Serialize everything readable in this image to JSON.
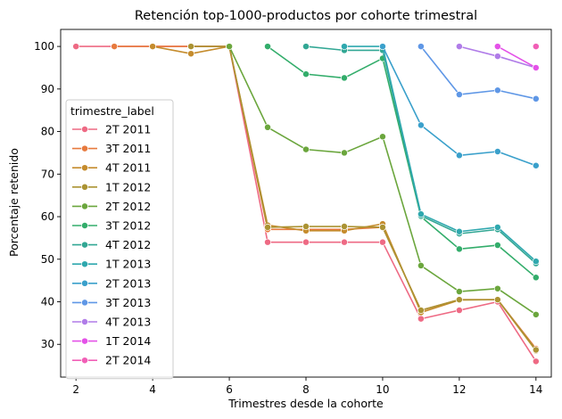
{
  "chart_data": {
    "type": "line",
    "title": "Retención top-1000-productos por cohorte trimestral",
    "xlabel": "Trimestres desde la cohorte",
    "ylabel": "Porcentaje retenido",
    "xlim": [
      1.6,
      14.4
    ],
    "ylim": [
      22.3,
      104.0
    ],
    "xticks": [
      2,
      4,
      6,
      8,
      10,
      12,
      14
    ],
    "yticks": [
      30,
      40,
      50,
      60,
      70,
      80,
      90,
      100
    ],
    "grid": false,
    "legend": {
      "title": "trimestre_label",
      "placement": "center-left"
    },
    "series": [
      {
        "name": "2T 2011",
        "color": "#ee6a84",
        "x": [
          2,
          3,
          4,
          5,
          6,
          7,
          8,
          9,
          10,
          11,
          12,
          13,
          14
        ],
        "y": [
          100,
          100,
          100,
          100,
          100,
          54,
          54,
          54,
          54,
          36,
          38,
          40,
          26
        ]
      },
      {
        "name": "3T 2011",
        "color": "#e77a3e",
        "x": [
          3,
          4,
          5,
          6,
          7,
          8,
          9,
          10,
          11,
          12,
          13,
          14
        ],
        "y": [
          100,
          100,
          100,
          100,
          57,
          57,
          57,
          57.5,
          38,
          40.5,
          40.5,
          29
        ]
      },
      {
        "name": "4T 2011",
        "color": "#c58c2d",
        "x": [
          4,
          5,
          6,
          7,
          8,
          9,
          10,
          11,
          12,
          13,
          14
        ],
        "y": [
          100,
          98.3,
          100,
          58,
          56.7,
          56.7,
          58.3,
          37.5,
          40.4,
          40.5,
          28.5
        ]
      },
      {
        "name": "1T 2012",
        "color": "#ab9333",
        "x": [
          5,
          6,
          7,
          8,
          9,
          10,
          11,
          12,
          13,
          14
        ],
        "y": [
          100,
          100,
          57.5,
          57.7,
          57.7,
          57.5,
          38,
          40.5,
          40.5,
          28.7
        ]
      },
      {
        "name": "2T 2012",
        "color": "#6ba63d",
        "x": [
          6,
          7,
          8,
          9,
          10,
          11,
          12,
          13,
          14
        ],
        "y": [
          100,
          81,
          75.8,
          75,
          78.8,
          48.5,
          42.4,
          43.1,
          37
        ]
      },
      {
        "name": "3T 2012",
        "color": "#33ad6b",
        "x": [
          7,
          8,
          9,
          10,
          11,
          12,
          13,
          14
        ],
        "y": [
          100,
          93.5,
          92.6,
          97.2,
          60,
          52.4,
          53.3,
          45.7
        ]
      },
      {
        "name": "4T 2012",
        "color": "#32a794",
        "x": [
          8,
          9,
          10,
          11,
          12,
          13,
          14
        ],
        "y": [
          100,
          99.1,
          99.1,
          60.2,
          56,
          57,
          49
        ]
      },
      {
        "name": "1T 2013",
        "color": "#2fa8ae",
        "x": [
          9,
          10,
          11,
          12,
          13,
          14
        ],
        "y": [
          100,
          100,
          60.6,
          56.5,
          57.5,
          49.5
        ]
      },
      {
        "name": "2T 2013",
        "color": "#3aa0cb",
        "x": [
          10,
          11,
          12,
          13,
          14
        ],
        "y": [
          100,
          81.5,
          74.4,
          75.3,
          72
        ]
      },
      {
        "name": "3T 2013",
        "color": "#5f97e6",
        "x": [
          11,
          12,
          13,
          14
        ],
        "y": [
          100,
          88.7,
          89.7,
          87.7
        ]
      },
      {
        "name": "4T 2013",
        "color": "#b07ce8",
        "x": [
          12,
          13,
          14
        ],
        "y": [
          100,
          97.7,
          95
        ]
      },
      {
        "name": "1T 2014",
        "color": "#e452e8",
        "x": [
          13,
          14
        ],
        "y": [
          100,
          95
        ]
      },
      {
        "name": "2T 2014",
        "color": "#f15fb6",
        "x": [
          14
        ],
        "y": [
          100
        ]
      }
    ]
  }
}
